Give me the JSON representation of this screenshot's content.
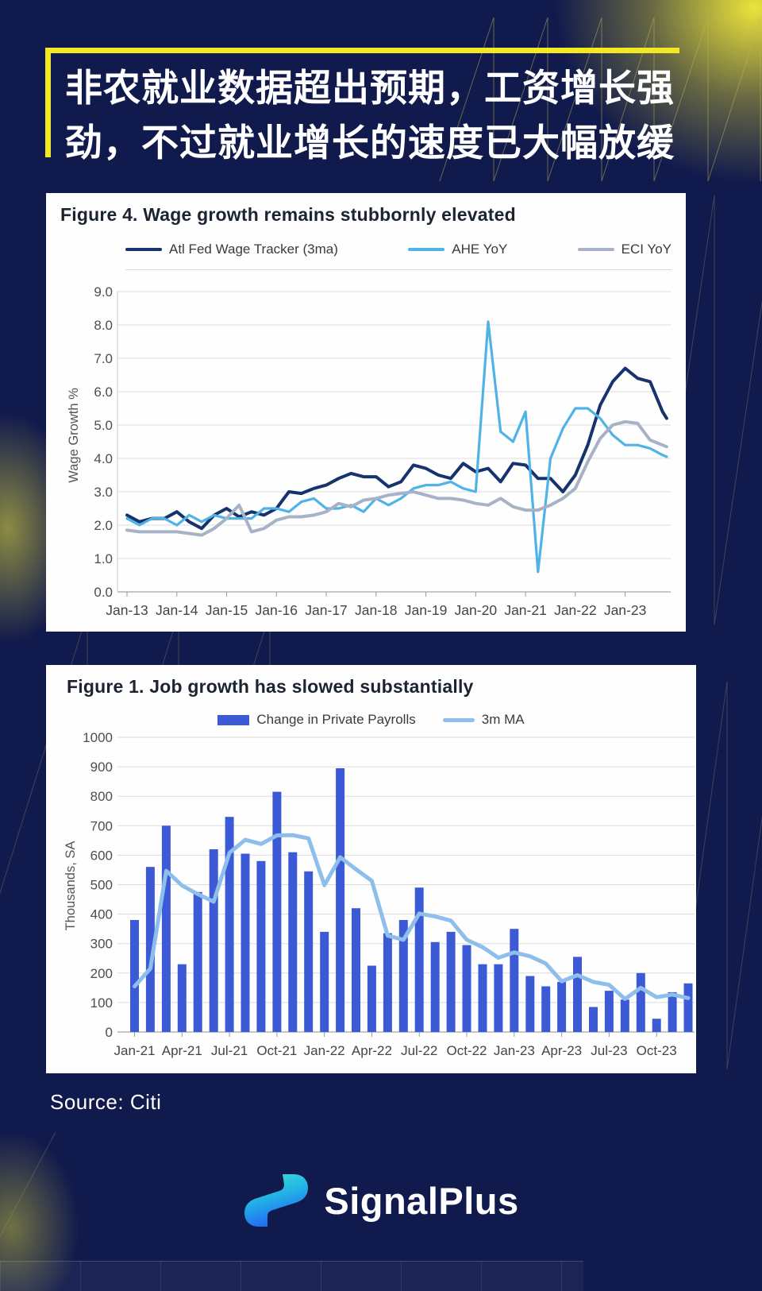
{
  "header": {
    "title_line1": "非农就业数据超出预期，工资增长强",
    "title_line2": "劲，不过就业增长的速度已大幅放缓",
    "accent_color": "#f3e824"
  },
  "source": "Source: Citi",
  "brand": "SignalPlus",
  "colors": {
    "background": "#111a4c",
    "card": "#fefefe",
    "accent_yellow": "#f3e824",
    "logo_gradient_top": "#3be8cd",
    "logo_gradient_bottom": "#2169f2"
  },
  "chart_data": [
    {
      "type": "line",
      "title": "Figure 4. Wage growth remains stubbornly elevated",
      "xlabel": "",
      "ylabel": "Wage Growth %",
      "ylim": [
        0,
        9
      ],
      "ytick_step": 1,
      "grid": true,
      "legend_position": "top",
      "x_months": [
        0,
        3,
        6,
        9,
        12,
        15,
        18,
        21,
        24,
        27,
        30,
        33,
        36,
        39,
        42,
        45,
        48,
        51,
        54,
        57,
        60,
        63,
        66,
        69,
        72,
        75,
        78,
        81,
        84,
        87,
        90,
        93,
        96,
        99,
        102,
        105,
        108,
        111,
        114,
        117,
        120,
        123,
        126,
        129,
        130
      ],
      "x_tick_months": [
        0,
        12,
        24,
        36,
        48,
        60,
        72,
        84,
        96,
        108,
        120
      ],
      "x_tick_labels": [
        "Jan-13",
        "Jan-14",
        "Jan-15",
        "Jan-16",
        "Jan-17",
        "Jan-18",
        "Jan-19",
        "Jan-20",
        "Jan-21",
        "Jan-22",
        "Jan-23"
      ],
      "series": [
        {
          "name": "Atl Fed Wage Tracker (3ma)",
          "color": "#16336e",
          "values": [
            2.3,
            2.1,
            2.2,
            2.2,
            2.4,
            2.1,
            1.9,
            2.3,
            2.5,
            2.25,
            2.4,
            2.3,
            2.5,
            3.0,
            2.95,
            3.1,
            3.2,
            3.4,
            3.55,
            3.45,
            3.45,
            3.15,
            3.3,
            3.8,
            3.7,
            3.5,
            3.4,
            3.85,
            3.6,
            3.7,
            3.3,
            3.85,
            3.8,
            3.4,
            3.4,
            3.0,
            3.5,
            4.4,
            5.6,
            6.3,
            6.7,
            6.4,
            6.3,
            5.4,
            5.2
          ]
        },
        {
          "name": "AHE YoY",
          "color": "#4fb3e8",
          "values": [
            2.2,
            2.0,
            2.2,
            2.2,
            2.0,
            2.3,
            2.1,
            2.3,
            2.2,
            2.2,
            2.2,
            2.5,
            2.5,
            2.4,
            2.7,
            2.8,
            2.5,
            2.5,
            2.6,
            2.4,
            2.8,
            2.6,
            2.8,
            3.1,
            3.2,
            3.2,
            3.3,
            3.1,
            3.0,
            8.1,
            4.8,
            4.5,
            5.4,
            0.6,
            4.0,
            4.9,
            5.5,
            5.5,
            5.2,
            4.7,
            4.4,
            4.4,
            4.3,
            4.1,
            4.05
          ]
        },
        {
          "name": "ECI YoY",
          "color": "#a8b2c6",
          "values": [
            1.85,
            1.8,
            1.8,
            1.8,
            1.8,
            1.75,
            1.7,
            1.9,
            2.2,
            2.6,
            1.8,
            1.9,
            2.15,
            2.25,
            2.25,
            2.3,
            2.4,
            2.65,
            2.55,
            2.75,
            2.8,
            2.9,
            2.95,
            3.0,
            2.9,
            2.8,
            2.8,
            2.75,
            2.65,
            2.6,
            2.8,
            2.55,
            2.45,
            2.45,
            2.6,
            2.8,
            3.1,
            3.9,
            4.6,
            5.0,
            5.1,
            5.05,
            4.55,
            4.4,
            4.35
          ]
        }
      ]
    },
    {
      "type": "bar",
      "title": "Figure 1. Job growth has slowed substantially",
      "xlabel": "",
      "ylabel": "Thousands, SA",
      "ylim": [
        0,
        1000
      ],
      "ytick_step": 100,
      "grid": true,
      "legend_position": "top",
      "x_tick_every": 3,
      "categories": [
        "Jan-21",
        "Feb-21",
        "Mar-21",
        "Apr-21",
        "May-21",
        "Jun-21",
        "Jul-21",
        "Aug-21",
        "Sep-21",
        "Oct-21",
        "Nov-21",
        "Dec-21",
        "Jan-22",
        "Feb-22",
        "Mar-22",
        "Apr-22",
        "May-22",
        "Jun-22",
        "Jul-22",
        "Aug-22",
        "Sep-22",
        "Oct-22",
        "Nov-22",
        "Dec-22",
        "Jan-23",
        "Feb-23",
        "Mar-23",
        "Apr-23",
        "May-23",
        "Jun-23",
        "Jul-23",
        "Aug-23",
        "Sep-23",
        "Oct-23",
        "Nov-23",
        "Dec-23"
      ],
      "series": [
        {
          "name": "Change in Private Payrolls",
          "type": "bar",
          "color": "#3c5ad6",
          "values": [
            380,
            560,
            700,
            230,
            475,
            620,
            730,
            605,
            580,
            815,
            610,
            545,
            340,
            895,
            420,
            225,
            335,
            380,
            490,
            305,
            340,
            295,
            230,
            230,
            350,
            190,
            155,
            170,
            255,
            85,
            140,
            110,
            200,
            45,
            135,
            165
          ]
        },
        {
          "name": "3m MA",
          "type": "line",
          "color": "#8dbeec",
          "values": [
            155,
            215,
            547,
            497,
            468,
            442,
            608,
            652,
            638,
            667,
            668,
            657,
            498,
            593,
            552,
            513,
            327,
            313,
            402,
            392,
            378,
            313,
            288,
            252,
            270,
            257,
            232,
            172,
            193,
            170,
            160,
            112,
            150,
            118,
            127,
            115
          ]
        }
      ]
    }
  ]
}
